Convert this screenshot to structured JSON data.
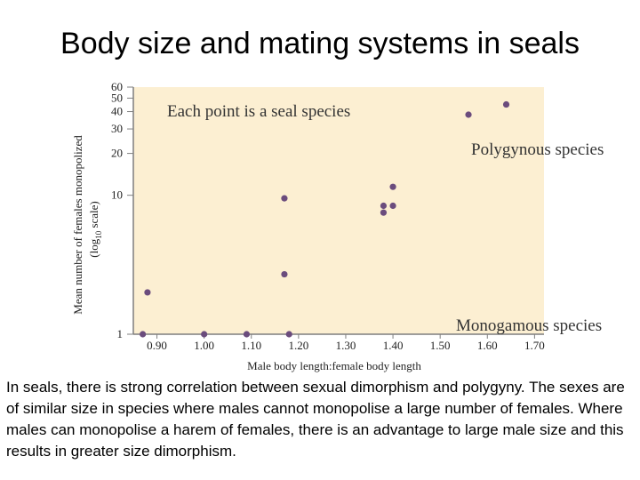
{
  "slide": {
    "title": "Body size and mating systems in seals",
    "caption": "In seals, there is strong correlation between sexual dimorphism and polygyny. The sexes are of similar size in species where males cannot monopolise a large number of females. Where males can monopolise a harem of females, there is an advantage to large male size and this results in greater size dimorphism."
  },
  "colors": {
    "plot_background": "#fcefd2",
    "point": "#6b4c7d",
    "axis": "#7f7f7f"
  },
  "chart_data": {
    "type": "scatter",
    "xlabel": "Male body length:female body length",
    "ylabel_line1": "Mean number of females monopolized",
    "ylabel_line2_prefix": "(log",
    "ylabel_line2_sub": "10",
    "ylabel_line2_suffix": " scale)",
    "xlim": [
      0.85,
      1.72
    ],
    "ylim": [
      1,
      60
    ],
    "y_scale": "log",
    "x_ticks": [
      {
        "value": 0.9,
        "label": "0.90"
      },
      {
        "value": 1.0,
        "label": "1.00"
      },
      {
        "value": 1.1,
        "label": "1.10"
      },
      {
        "value": 1.2,
        "label": "1.20"
      },
      {
        "value": 1.3,
        "label": "1.30"
      },
      {
        "value": 1.4,
        "label": "1.40"
      },
      {
        "value": 1.5,
        "label": "1.50"
      },
      {
        "value": 1.6,
        "label": "1.60"
      },
      {
        "value": 1.7,
        "label": "1.70"
      }
    ],
    "y_ticks": [
      {
        "value": 1,
        "label": "1"
      },
      {
        "value": 10,
        "label": "10"
      },
      {
        "value": 20,
        "label": "20"
      },
      {
        "value": 30,
        "label": "30"
      },
      {
        "value": 40,
        "label": "40"
      },
      {
        "value": 50,
        "label": "50"
      },
      {
        "value": 60,
        "label": "60"
      }
    ],
    "points": [
      {
        "x": 0.87,
        "y": 1.0
      },
      {
        "x": 0.88,
        "y": 2.0
      },
      {
        "x": 1.0,
        "y": 1.0
      },
      {
        "x": 1.09,
        "y": 1.0
      },
      {
        "x": 1.17,
        "y": 9.5
      },
      {
        "x": 1.17,
        "y": 2.7
      },
      {
        "x": 1.18,
        "y": 1.0
      },
      {
        "x": 1.38,
        "y": 8.4
      },
      {
        "x": 1.38,
        "y": 7.5
      },
      {
        "x": 1.4,
        "y": 8.4
      },
      {
        "x": 1.4,
        "y": 11.5
      },
      {
        "x": 1.56,
        "y": 38
      },
      {
        "x": 1.64,
        "y": 45
      }
    ],
    "annotations": [
      {
        "text": "Each point is a seal species"
      },
      {
        "text": "Polygynous species"
      },
      {
        "text": "Monogamous species"
      }
    ]
  }
}
